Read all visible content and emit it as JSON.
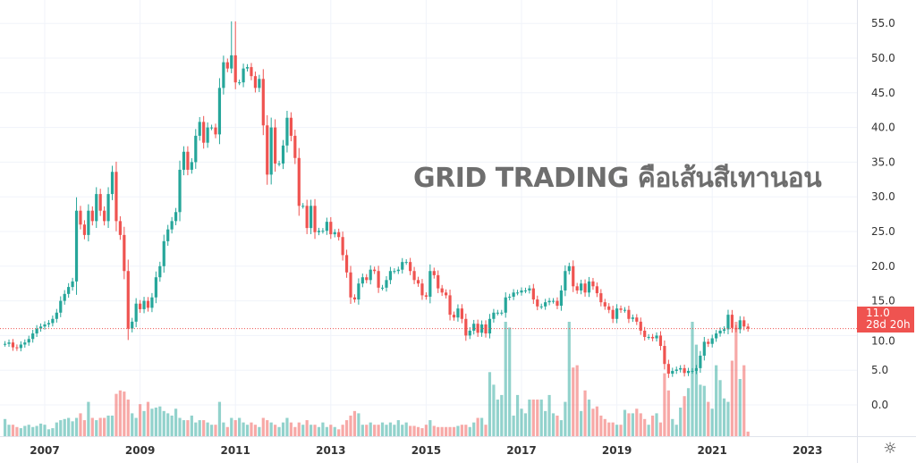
{
  "overlay_title": "GRID TRADING คือเส้นสีเทานอน",
  "last_price": {
    "value": "11.0",
    "countdown": "28d 20h",
    "color": "#ef5350"
  },
  "settings_icon": "gear-icon",
  "chart_data": {
    "type": "candlestick",
    "interval": "monthly",
    "start": "2006-03",
    "up_color": "#26a69a",
    "down_color": "#ef5350",
    "grid": true,
    "ylim": [
      0,
      55
    ],
    "y_ticks": [
      "55.0",
      "50.0",
      "45.0",
      "40.0",
      "35.0",
      "30.0",
      "25.0",
      "20.0",
      "15.0",
      "10.0",
      "5.0",
      "0.0"
    ],
    "y_tick_values": [
      55,
      50,
      45,
      40,
      35,
      30,
      25,
      20,
      15,
      10,
      5,
      0
    ],
    "x_ticks": [
      "2007",
      "2009",
      "2011",
      "2013",
      "2015",
      "2017",
      "2019",
      "2021",
      "2023"
    ],
    "all_time_high": 55.3,
    "close": [
      8.8,
      9.0,
      8.3,
      8.2,
      8.7,
      9.0,
      9.5,
      10.3,
      11.0,
      11.3,
      11.6,
      11.8,
      12.4,
      13.3,
      15,
      16,
      17,
      17.8,
      28,
      26,
      24.5,
      28,
      26.5,
      30.4,
      28,
      26.5,
      30.4,
      33.6,
      26.5,
      24.5,
      19.3,
      11,
      12,
      14.6,
      13.8,
      15,
      14,
      15.5,
      18.4,
      20,
      23.6,
      25.3,
      26.5,
      27.8,
      33.9,
      36.5,
      33.9,
      35,
      38.8,
      40.8,
      37.8,
      40,
      40,
      39,
      45.7,
      49.4,
      48.5,
      50.4,
      46.5,
      46.5,
      48.5,
      48.7,
      47.4,
      45.7,
      47,
      40.3,
      33.2,
      40,
      34.8,
      34.8,
      37.4,
      41.4,
      38.8,
      35.6,
      28.7,
      28.7,
      25.5,
      28.7,
      24.9,
      25.1,
      25.1,
      26.4,
      24.6,
      24.9,
      24.2,
      21.6,
      19.1,
      15.5,
      15.2,
      17.5,
      18.4,
      18,
      19.5,
      19.3,
      16.9,
      16.9,
      18,
      19.3,
      19.3,
      19.5,
      20.6,
      20.6,
      19.3,
      18,
      17.5,
      15.8,
      15.6,
      19.3,
      18.7,
      16.8,
      16.2,
      15.8,
      13,
      12.6,
      13.9,
      12.4,
      10,
      10.7,
      11.7,
      10.4,
      11.6,
      10.3,
      12.4,
      13.3,
      13.3,
      13.3,
      15.5,
      15.6,
      16.2,
      16.2,
      16.5,
      16.5,
      16.8,
      15.2,
      14.2,
      14.2,
      14.8,
      15,
      15,
      14.3,
      16.5,
      19.3,
      20,
      17.1,
      16.5,
      17.5,
      16.2,
      17.8,
      17.1,
      16.1,
      14.8,
      14.2,
      13.7,
      12.4,
      13.9,
      13.7,
      13.7,
      12.4,
      12.6,
      12,
      10.7,
      9.8,
      9.8,
      9.6,
      10,
      8.5,
      5.9,
      4.5,
      4.9,
      5.1,
      5.3,
      4.6,
      4.9,
      4.9,
      5.3,
      7.1,
      9.1,
      8.8,
      9.6,
      10.3,
      10.7,
      10.9,
      13,
      11.1,
      10.9,
      12.2,
      11.3,
      11.0
    ],
    "volume_relative": [
      15,
      10,
      10,
      8,
      7,
      9,
      10,
      8,
      9,
      11,
      10,
      6,
      7,
      12,
      14,
      15,
      16,
      13,
      16,
      20,
      14,
      30,
      16,
      14,
      16,
      16,
      18,
      18,
      37,
      40,
      39,
      32,
      20,
      16,
      28,
      22,
      30,
      24,
      25,
      26,
      22,
      20,
      18,
      24,
      16,
      14,
      14,
      18,
      12,
      14,
      14,
      12,
      10,
      10,
      30,
      12,
      8,
      16,
      14,
      16,
      12,
      10,
      12,
      10,
      8,
      16,
      14,
      12,
      10,
      8,
      12,
      16,
      12,
      8,
      12,
      10,
      14,
      10,
      10,
      8,
      12,
      8,
      10,
      8,
      6,
      10,
      14,
      18,
      22,
      20,
      10,
      10,
      12,
      10,
      10,
      12,
      10,
      12,
      10,
      14,
      10,
      12,
      9,
      9,
      8,
      7,
      10,
      14,
      9,
      8,
      8,
      8,
      8,
      8,
      9,
      10,
      10,
      8,
      12,
      16,
      16,
      10,
      56,
      45,
      32,
      36,
      100,
      95,
      18,
      36,
      24,
      20,
      32,
      32,
      32,
      32,
      22,
      36,
      20,
      18,
      14,
      30,
      100,
      60,
      62,
      22,
      40,
      32,
      24,
      26,
      18,
      15,
      12,
      12,
      10,
      10,
      23,
      20,
      20,
      24,
      20,
      15,
      10,
      18,
      20,
      12,
      55,
      40,
      15,
      10,
      25,
      35,
      42,
      100,
      80,
      45,
      44,
      30,
      24,
      62,
      49,
      33,
      30,
      66,
      100,
      50,
      62,
      4
    ]
  }
}
